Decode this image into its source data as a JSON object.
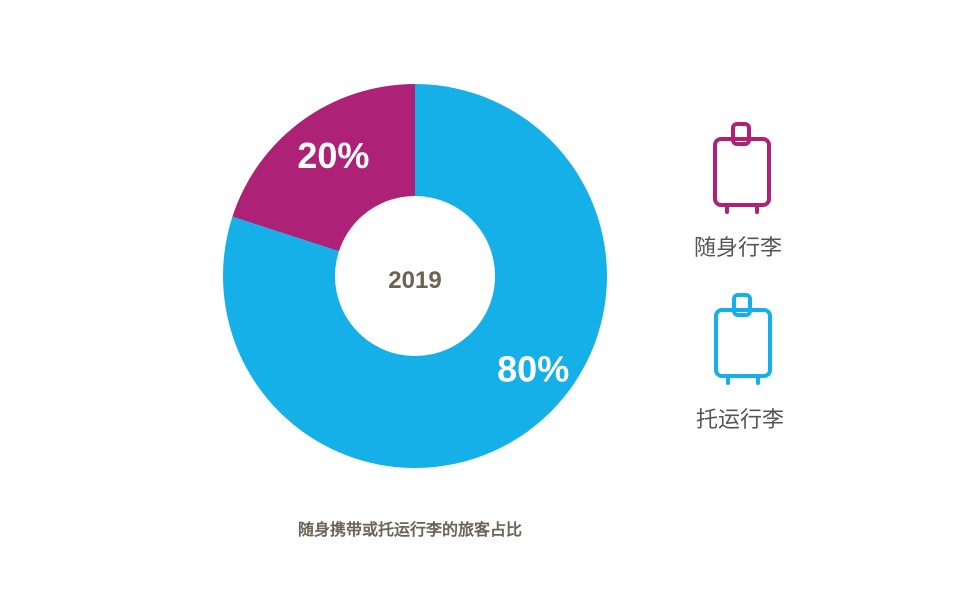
{
  "chart_data": {
    "type": "pie",
    "center_label": "2019",
    "caption": "随身携带或托运行李的旅客占比",
    "slices": [
      {
        "name": "随身行李",
        "value": 20,
        "label": "20%",
        "color": "#ad2176"
      },
      {
        "name": "托运行李",
        "value": 80,
        "label": "80%",
        "color": "#15b0e8"
      }
    ],
    "legend": {
      "placement": "right",
      "items": [
        {
          "label": "随身行李",
          "icon": "suitcase-icon",
          "color": "#ad2176"
        },
        {
          "label": "托运行李",
          "icon": "suitcase-icon",
          "color": "#15b0e8"
        }
      ]
    }
  }
}
